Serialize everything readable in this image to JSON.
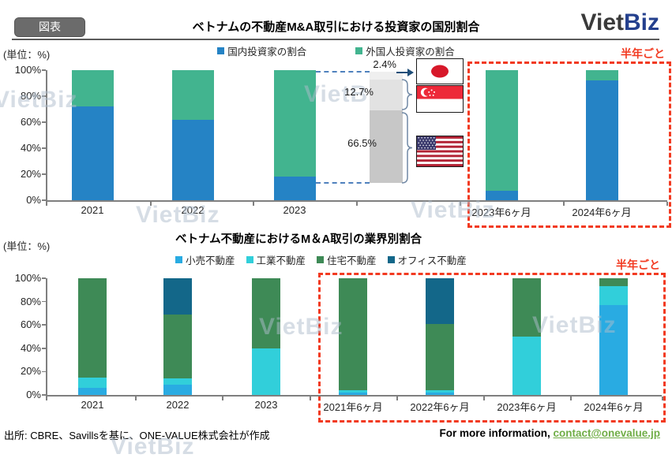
{
  "header": {
    "badge": "図表",
    "logo": {
      "viet": "Viet",
      "biz": "Biz"
    }
  },
  "watermark": "VietBiz",
  "footer": {
    "source": "出所: CBRE、Savillsを基に、ONE-VALUE株式会社が作成",
    "info": "For more information, ",
    "link": "contact@onevalue.jp"
  },
  "accent_colors": {
    "highlight_red": "#F23A21",
    "link_green": "#70AD47",
    "logo_navy": "#24408E"
  },
  "chart_data": [
    {
      "type": "bar",
      "stacked": true,
      "title": "ベトナムの不動産M&A取引における投資家の国別割合",
      "unit_label": "(単位：%)",
      "period_label": "半年ごと",
      "legend_position": "top",
      "ylim": [
        0,
        100
      ],
      "yticks": [
        "0%",
        "20%",
        "40%",
        "60%",
        "80%",
        "100%"
      ],
      "categories": [
        "2021",
        "2022",
        "2023",
        "2023年6ヶ月",
        "2024年6ヶ月"
      ],
      "series": [
        {
          "name": "国内投資家の割合",
          "color": "#2583C5",
          "values": [
            72,
            62,
            18,
            7,
            92
          ]
        },
        {
          "name": "外国人投資家の割合",
          "color": "#42B48F",
          "values": [
            28,
            38,
            82,
            93,
            8
          ]
        }
      ],
      "annotation": {
        "target_category": "2023",
        "description": "breakdown of foreign investors share",
        "segments": [
          {
            "label": "2.4%",
            "flag": "japan-flag"
          },
          {
            "label": "12.7%",
            "flag": "singapore-flag"
          },
          {
            "label": "66.5%",
            "flag": "usa-flag"
          }
        ]
      }
    },
    {
      "type": "bar",
      "stacked": true,
      "title": "ベトナム不動産におけるM＆A取引の業界別割合",
      "unit_label": "(単位：%)",
      "period_label": "半年ごと",
      "legend_position": "top",
      "ylim": [
        0,
        100
      ],
      "yticks": [
        "0%",
        "20%",
        "40%",
        "60%",
        "80%",
        "100%"
      ],
      "categories": [
        "2021",
        "2022",
        "2023",
        "2021年6ヶ月",
        "2022年6ヶ月",
        "2023年6ヶ月",
        "2024年6ヶ月"
      ],
      "series": [
        {
          "name": "小売不動産",
          "color": "#29ABE2",
          "values": [
            6,
            9,
            0,
            2,
            2,
            0,
            77
          ]
        },
        {
          "name": "工業不動産",
          "color": "#31CFDA",
          "values": [
            9,
            5,
            40,
            2,
            2,
            50,
            16
          ]
        },
        {
          "name": "住宅不動産",
          "color": "#3E8A56",
          "values": [
            85,
            55,
            60,
            96,
            57,
            50,
            7
          ]
        },
        {
          "name": "オフィス不動産",
          "color": "#136789",
          "values": [
            0,
            31,
            0,
            0,
            39,
            0,
            0
          ]
        }
      ]
    }
  ]
}
